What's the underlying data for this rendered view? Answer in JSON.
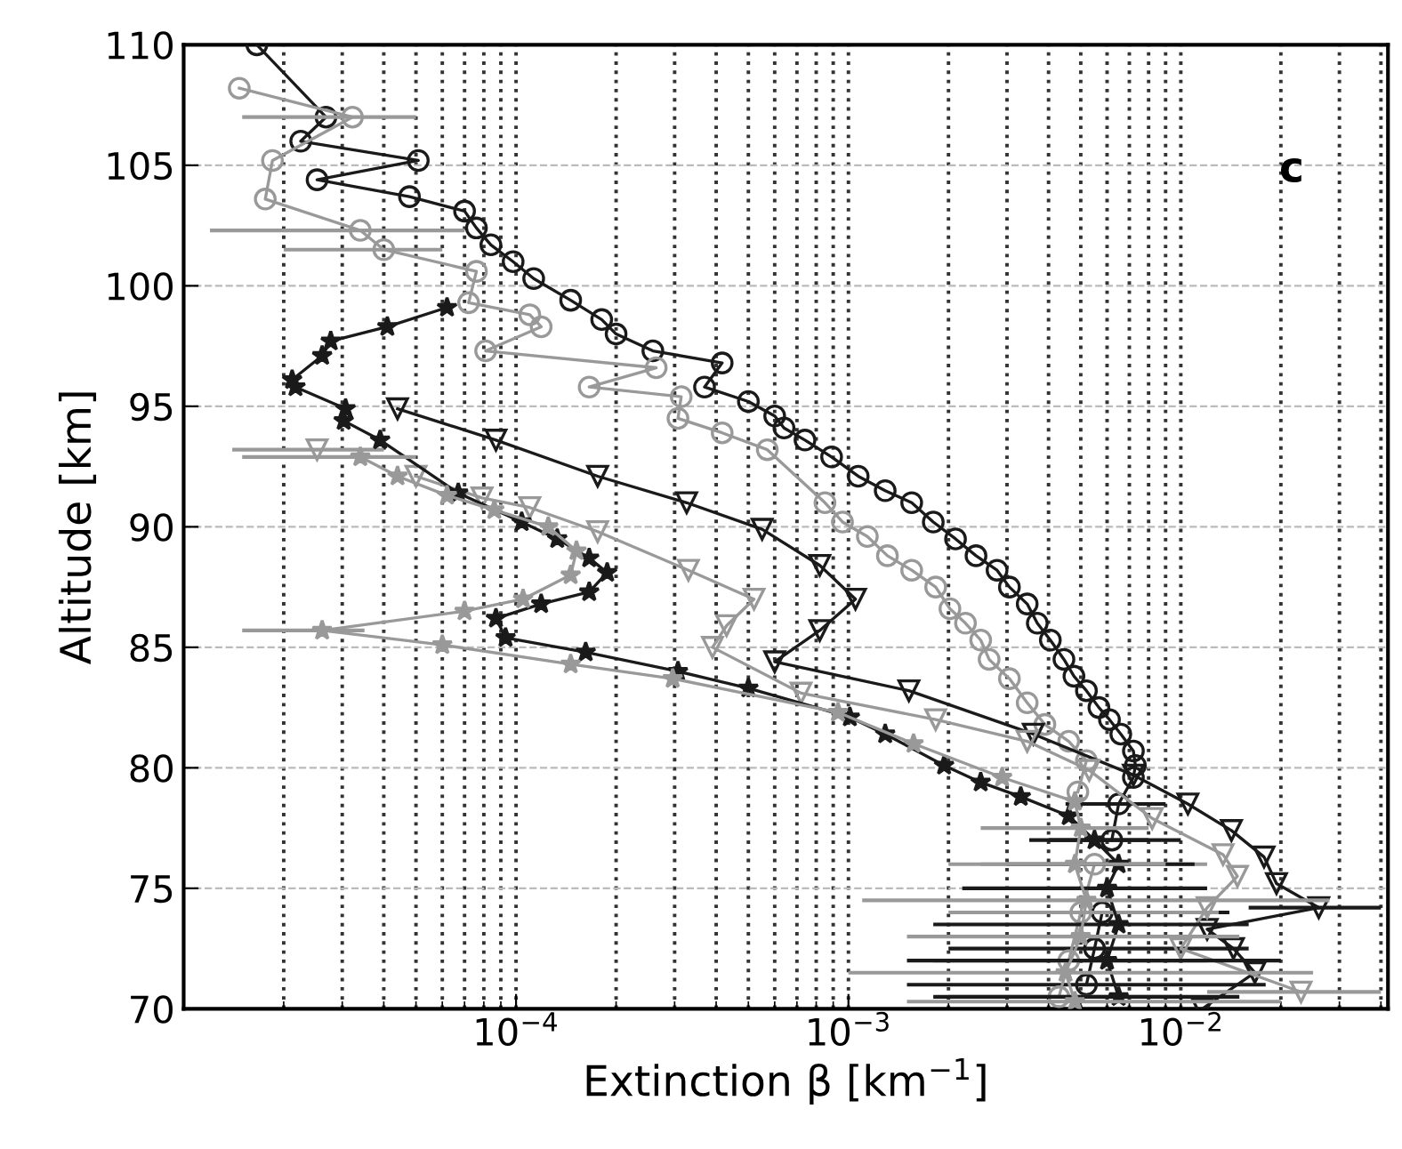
{
  "chart_data": {
    "type": "line",
    "xlabel": "Extinction β [km$^{−1}$]",
    "ylabel": "Altitude [km]",
    "annotations": [
      "c"
    ],
    "log": "x",
    "grid": true,
    "line_style": "solid",
    "xlim": [
      1e-05,
      0.042
    ],
    "xticks": [
      {
        "value": 0.0001,
        "label": "10$^{−4}$"
      },
      {
        "value": 0.001,
        "label": "10$^{−3}$"
      },
      {
        "value": 0.01,
        "label": "10$^{−2}$"
      }
    ],
    "ylim": [
      70,
      110
    ],
    "yticks": [
      70,
      75,
      80,
      85,
      90,
      95,
      100,
      105,
      110
    ],
    "series": [
      {
        "color": "#1a1a1a",
        "marker": "circle",
        "x": [
          1.66e-05,
          2.68e-05,
          2.25e-05,
          5.08e-05,
          2.52e-05,
          4.78e-05,
          7e-05,
          7.6e-05,
          8.4e-05,
          9.8e-05,
          0.000113,
          0.000146,
          0.000181,
          0.0002,
          0.000258,
          0.000417,
          0.000369,
          0.0005,
          0.0006,
          0.00064,
          0.00074,
          0.00089,
          0.00107,
          0.00129,
          0.00155,
          0.0018,
          0.0021,
          0.00242,
          0.0028,
          0.00305,
          0.00345,
          0.0037,
          0.00405,
          0.00445,
          0.00477,
          0.0052,
          0.00567,
          0.0061,
          0.0066,
          0.0072,
          0.0073,
          0.0072,
          0.0065,
          0.0062,
          0.006,
          0.0058,
          0.0055,
          0.0052
        ],
        "values": [
          110,
          107.0,
          106.0,
          105.2,
          104.4,
          103.7,
          103.1,
          102.4,
          101.7,
          101.0,
          100.3,
          99.4,
          98.6,
          98.0,
          97.3,
          96.8,
          95.8,
          95.2,
          94.6,
          94.1,
          93.6,
          92.9,
          92.1,
          91.5,
          91.0,
          90.2,
          89.5,
          88.8,
          88.2,
          87.5,
          86.8,
          86.0,
          85.3,
          84.5,
          83.8,
          83.2,
          82.5,
          82.0,
          81.4,
          80.7,
          80.1,
          79.6,
          78.5,
          77.0,
          null,
          74.0,
          72.5,
          71.0
        ],
        "xerrors": [
          null,
          null,
          null,
          null,
          null,
          null,
          null,
          null,
          null,
          null,
          null,
          null,
          null,
          null,
          null,
          null,
          null,
          null,
          null,
          null,
          null,
          null,
          null,
          null,
          null,
          null,
          null,
          null,
          null,
          null,
          null,
          null,
          null,
          null,
          null,
          null,
          null,
          null,
          null,
          null,
          null,
          null,
          [
            0.0045,
            0.009
          ],
          [
            0.004,
            0.01
          ],
          null,
          [
            0.0025,
            0.014
          ],
          [
            0.002,
            0.016
          ],
          [
            0.0015,
            0.018
          ]
        ]
      },
      {
        "color": "#999999",
        "marker": "circle",
        "x": [
          1.47e-05,
          3.22e-05,
          1.85e-05,
          1.76e-05,
          3.4e-05,
          4e-05,
          7.6e-05,
          7.2e-05,
          0.00011,
          0.000119,
          8.1e-05,
          0.000264,
          0.000166,
          0.000314,
          0.000307,
          0.000417,
          0.00057,
          0.00085,
          0.00096,
          0.00114,
          0.00131,
          0.00155,
          0.00183,
          0.00202,
          0.00225,
          0.0025,
          0.00265,
          0.00305,
          0.00345,
          0.0039,
          0.0046,
          0.0052,
          0.0049,
          0.0052,
          0.0055,
          0.005,
          0.0046,
          0.0043
        ],
        "values": [
          108.2,
          107.0,
          105.2,
          103.6,
          102.3,
          101.5,
          100.6,
          99.3,
          98.8,
          98.3,
          97.3,
          96.6,
          95.8,
          95.4,
          94.5,
          93.9,
          93.2,
          91.0,
          90.2,
          89.6,
          88.8,
          88.2,
          87.5,
          86.6,
          86.0,
          85.3,
          84.5,
          83.7,
          82.7,
          81.8,
          81.1,
          80.3,
          79.0,
          null,
          76.0,
          74.0,
          72.0,
          70.5
        ],
        "xerrors": [
          null,
          [
            1.5e-05,
            5e-05
          ],
          null,
          null,
          [
            1.2e-05,
            7e-05
          ],
          [
            2e-05,
            6e-05
          ],
          null,
          null,
          null,
          null,
          null,
          null,
          null,
          null,
          null,
          null,
          null,
          null,
          null,
          null,
          null,
          null,
          null,
          null,
          null,
          null,
          null,
          null,
          null,
          null,
          null,
          null,
          null,
          null,
          [
            0.0025,
            0.012
          ],
          [
            0.002,
            0.013
          ],
          [
            0.0018,
            0.012
          ],
          [
            0.002,
            0.01
          ]
        ]
      },
      {
        "color": "#1a1a1a",
        "marker": "triangle",
        "x": [
          4.4e-05,
          8.7e-05,
          0.000176,
          0.000326,
          0.00055,
          0.00082,
          0.00105,
          0.00082,
          0.0006,
          0.00152,
          0.0036,
          0.0072,
          0.0105,
          0.0142,
          0.0178,
          0.0194,
          0.026,
          0.012,
          0.0144,
          0.0167,
          0.0116
        ],
        "values": [
          94.9,
          93.6,
          92.1,
          91.0,
          89.9,
          88.4,
          87.0,
          85.7,
          84.4,
          83.2,
          81.4,
          79.7,
          78.5,
          77.4,
          76.3,
          75.2,
          74.2,
          73.3,
          72.5,
          71.5,
          70.0
        ],
        "xerrors": [
          null,
          null,
          null,
          null,
          null,
          null,
          null,
          null,
          null,
          null,
          null,
          null,
          null,
          null,
          null,
          null,
          [
            0.016,
            0.04
          ],
          null,
          null,
          null,
          null
        ]
      },
      {
        "color": "#999999",
        "marker": "triangle",
        "x": [
          2.52e-05,
          3.5e-05,
          5e-05,
          7.9e-05,
          0.00011,
          0.000176,
          0.00033,
          0.00052,
          0.00043,
          0.00039,
          0.00072,
          0.00183,
          0.00345,
          0.0053,
          0.0082,
          0.0134,
          0.0148,
          0.012,
          0.01,
          0.023
        ],
        "values": [
          93.2,
          null,
          92.1,
          91.2,
          90.8,
          89.8,
          88.2,
          87.0,
          85.9,
          85.0,
          83.1,
          82.0,
          81.1,
          79.9,
          77.9,
          76.4,
          75.5,
          74.2,
          72.5,
          70.7
        ],
        "xerrors": [
          [
            1.4e-05,
            4e-05
          ],
          null,
          null,
          null,
          null,
          null,
          null,
          null,
          null,
          null,
          null,
          null,
          null,
          null,
          null,
          null,
          null,
          null,
          null,
          [
            0.012,
            0.04
          ]
        ]
      },
      {
        "color": "#1a1a1a",
        "marker": "star",
        "x": [
          6.2e-05,
          4.1e-05,
          2.77e-05,
          2.61e-05,
          2.12e-05,
          2.17e-05,
          3.07e-05,
          3.03e-05,
          3.9e-05,
          6.7e-05,
          0.000104,
          0.000133,
          0.000166,
          0.000188,
          0.000166,
          0.000119,
          8.7e-05,
          9.3e-05,
          0.000162,
          0.000307,
          0.0005,
          0.00101,
          0.00129,
          0.00194,
          0.0025,
          0.0033,
          0.0046,
          0.0055,
          0.0065,
          0.006,
          0.0065,
          0.006,
          0.0065
        ],
        "values": [
          99.1,
          98.3,
          97.7,
          97.1,
          96.1,
          95.8,
          94.9,
          94.4,
          93.6,
          91.4,
          90.2,
          89.5,
          88.7,
          88.1,
          87.3,
          86.8,
          86.2,
          85.4,
          84.8,
          84.0,
          83.3,
          82.1,
          81.4,
          80.1,
          79.4,
          78.8,
          78.0,
          77.0,
          76.0,
          75.0,
          73.5,
          72.0,
          70.5
        ],
        "xerrors": [
          null,
          null,
          null,
          null,
          null,
          null,
          null,
          null,
          null,
          null,
          null,
          null,
          null,
          null,
          null,
          null,
          null,
          null,
          null,
          null,
          null,
          null,
          null,
          null,
          null,
          null,
          null,
          [
            0.0035,
            0.008
          ],
          [
            0.003,
            0.011
          ],
          [
            0.0022,
            0.012
          ],
          [
            0.0018,
            0.016
          ],
          [
            0.0015,
            0.02
          ],
          [
            0.0018,
            0.015
          ]
        ]
      },
      {
        "color": "#999999",
        "marker": "star",
        "x": [
          3.4e-05,
          4.4e-05,
          6.2e-05,
          8.6e-05,
          0.000125,
          0.000152,
          0.000146,
          0.000105,
          7e-05,
          2.61e-05,
          6e-05,
          0.000146,
          0.000296,
          0.00093,
          0.00157,
          0.0029,
          0.0048,
          0.005,
          0.0048,
          0.0052,
          0.005,
          0.0045,
          0.0048
        ],
        "values": [
          92.9,
          92.1,
          91.3,
          90.7,
          90.0,
          89.0,
          88.0,
          87.0,
          86.5,
          85.7,
          85.1,
          84.3,
          83.7,
          82.3,
          81.0,
          79.6,
          78.6,
          77.5,
          76.0,
          74.5,
          73.0,
          71.5,
          70.3
        ],
        "xerrors": [
          [
            1.5e-05,
            5e-05
          ],
          null,
          null,
          null,
          null,
          null,
          null,
          null,
          null,
          [
            1.5e-05,
            3.5e-05
          ],
          null,
          null,
          null,
          null,
          null,
          null,
          null,
          [
            0.0025,
            0.008
          ],
          [
            0.002,
            0.009
          ],
          [
            0.0011,
            0.028
          ],
          [
            0.0015,
            0.015
          ],
          [
            0.001,
            0.025
          ],
          [
            0.0015,
            0.02
          ]
        ]
      }
    ]
  }
}
